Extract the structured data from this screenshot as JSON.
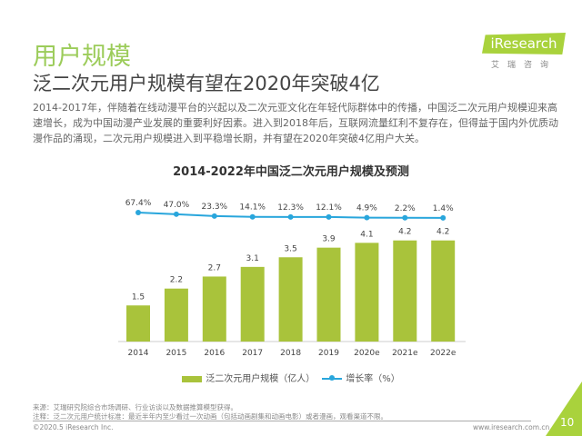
{
  "header": {
    "section_title": "用户规模",
    "headline": "泛二次元用户规模有望在2020年突破4亿",
    "logo_text": "iResearch",
    "logo_sub": "艾瑞咨询"
  },
  "body_text": "2014-2017年，伴随着在线动漫平台的兴起以及二次元亚文化在年轻代际群体中的传播，中国泛二次元用户规模迎来高速增长，成为中国动漫产业发展的重要利好因素。进入到2018年后，互联网流量红利不复存在，但得益于国内外优质动漫作品的涌现，二次元用户规模进入到平稳增长期，并有望在2020年突破4亿用户大关。",
  "chart_data": {
    "type": "bar+line",
    "title": "2014-2022年中国泛二次元用户规模及预测",
    "categories": [
      "2014",
      "2015",
      "2016",
      "2017",
      "2018",
      "2019",
      "2020e",
      "2021e",
      "2022e"
    ],
    "series": [
      {
        "name": "泛二次元用户规模（亿人）",
        "type": "bar",
        "values": [
          1.5,
          2.2,
          2.7,
          3.1,
          3.5,
          3.9,
          4.1,
          4.2,
          4.2
        ],
        "color": "#a9c33b"
      },
      {
        "name": "增长率（%）",
        "type": "line",
        "values": [
          67.4,
          47.0,
          23.3,
          14.1,
          12.3,
          12.1,
          4.9,
          2.2,
          1.4
        ],
        "labels": [
          "67.4%",
          "47.0%",
          "23.3%",
          "14.1%",
          "12.3%",
          "12.1%",
          "4.9%",
          "2.2%",
          "1.4%"
        ],
        "color": "#29a6dc"
      }
    ],
    "legend": "bottom"
  },
  "footer": {
    "source": "来源：艾瑞研究院综合市场调研、行业访谈以及数据推算模型获得。",
    "note": "注释：泛二次元用户统计标准：最近半年内至少看过一次动画（包括动画剧集和动画电影）或者漫画，观看渠道不限。",
    "copyright": "©2020.5 iResearch Inc.",
    "url": "www.iresearch.com.cn",
    "page": "10"
  }
}
